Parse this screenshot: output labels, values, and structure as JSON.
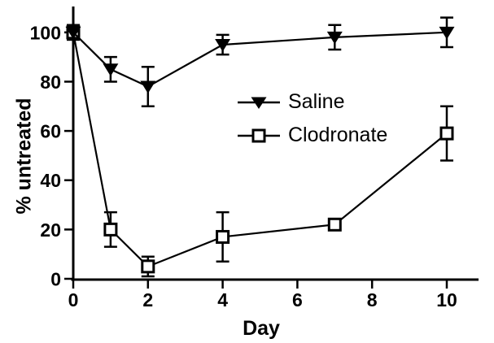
{
  "figure": {
    "background": "#ffffff",
    "ink_color": "#000000"
  },
  "chart_data": {
    "type": "line",
    "title": "",
    "xlabel": "Day",
    "ylabel": "% untreated",
    "x": [
      0,
      1,
      2,
      4,
      7,
      10
    ],
    "series": [
      {
        "name": "Saline",
        "marker": "filled-triangle-down",
        "values": [
          100,
          85,
          78,
          95,
          98,
          100
        ],
        "errors": [
          3,
          5,
          8,
          4,
          5,
          6
        ]
      },
      {
        "name": "Clodronate",
        "marker": "open-square",
        "values": [
          100,
          20,
          5,
          17,
          22,
          59
        ],
        "errors": [
          0,
          7,
          4,
          10,
          0,
          11
        ]
      }
    ],
    "xticks": [
      0,
      2,
      4,
      6,
      8,
      10
    ],
    "yticks": [
      0,
      20,
      40,
      60,
      80,
      100
    ],
    "xlim": [
      0,
      10.85
    ],
    "ylim": [
      0,
      110.5
    ],
    "grid": false,
    "legend_position": "center",
    "error_bars": true
  }
}
